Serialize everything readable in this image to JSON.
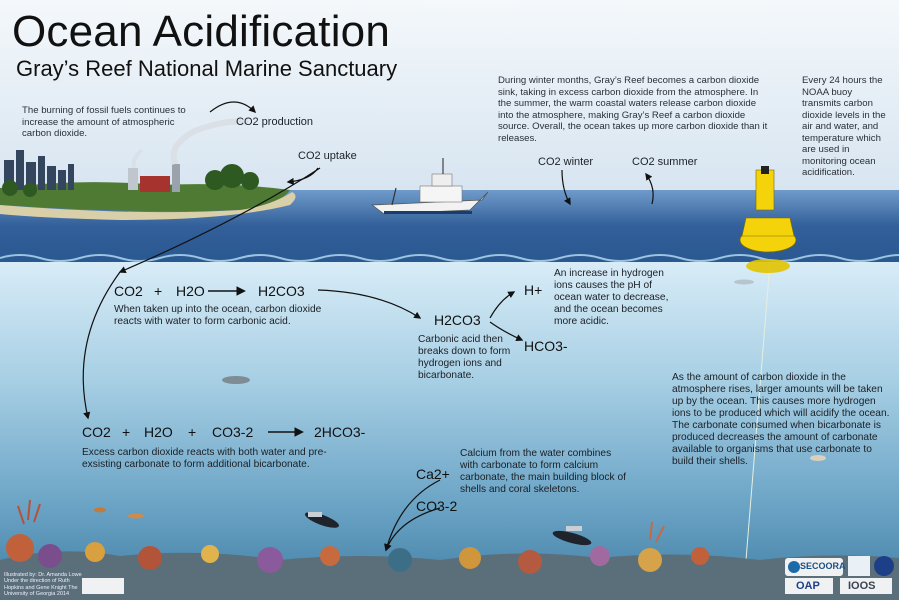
{
  "title": "Ocean Acidification",
  "subtitle": "Gray’s Reef National Marine Sanctuary",
  "texts": {
    "fossil_fuels": "The burning of fossil fuels continues to increase the amount of atmospheric carbon dioxide.",
    "winter_sink": "During winter months, Gray’s Reef becomes a carbon dioxide sink, taking in excess carbon dioxide from the atmosphere. In the summer, the warm coastal waters release carbon dioxide into the atmosphere, making Gray’s Reef a carbon dioxide source. Overall, the ocean takes up more carbon dioxide than it releases.",
    "buoy": "Every 24 hours the NOAA buoy transmits carbon dioxide levels in the air and water, and temperature which are used in monitoring ocean acidification.",
    "carbonic_acid_form": "When taken up into the ocean, carbon dioxide reacts with water to form carbonic acid.",
    "carbonic_acid_break": "Carbonic acid then breaks down to form hydrogen ions and bicarbonate.",
    "hydrogen_ph": "An increase in hydrogen ions causes the pH of ocean water to decrease, and the ocean becomes more acidic.",
    "excess_co2": "Excess carbon dioxide reacts with both water and pre-exsisting carbonate to form additional bicarbonate.",
    "calcium": "Calcium from the water combines with carbonate to form calcium carbonate, the main building block of shells and coral skeletons.",
    "rising_co2": "As the amount of carbon dioxide in the atmosphere rises, larger amounts will be taken up by the ocean. This causes more hydrogen ions to be produced which will acidify the ocean. The carbonate consumed when bicarbonate is produced decreases the amount of carbonate available to organisms that use carbonate to build their shells."
  },
  "labels": {
    "co2_production": "CO2 production",
    "co2_uptake": "CO2 uptake",
    "co2_winter": "CO2 winter",
    "co2_summer": "CO2 summer",
    "co2": "CO2",
    "plus": "+",
    "h2o": "H2O",
    "h2co3": "H2CO3",
    "h_plus": "H+",
    "hco3_minus": "HCO3-",
    "co3_2": "CO3-2",
    "two_hco3": "2HCO3-",
    "ca2": "Ca2+",
    "co3_2b": "CO3-2"
  },
  "logos": {
    "secoora": "SECOORA",
    "oap": "OAP",
    "ioos": "IOOS"
  },
  "credit": "Illustrated by: Dr. Amanda Lowe Under the direction of Ruth Hopkins and Gene Knight The University of Georgia 2014",
  "colors": {
    "sky": "#dfe9f3",
    "ocean_surface": "#3f74ad",
    "water_top": "#cfe6f5",
    "water_bottom": "#2f6e95",
    "buoy": "#f5d30a"
  }
}
